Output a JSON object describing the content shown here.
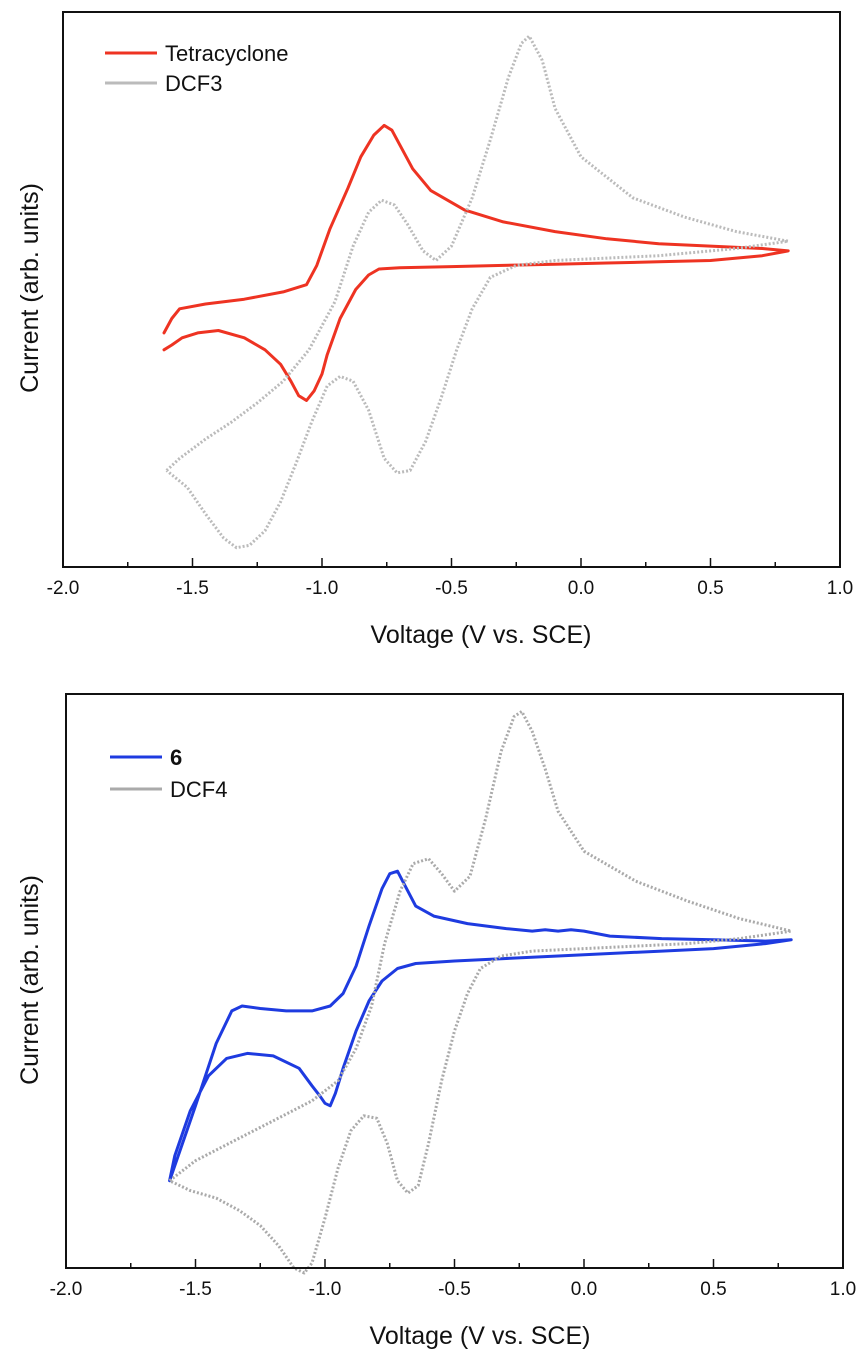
{
  "chart_data": [
    {
      "type": "line",
      "title": "",
      "xlabel": "Voltage (V vs. SCE)",
      "ylabel": "Current (arb. units)",
      "xlim": [
        -2.0,
        1.0
      ],
      "ylim": [
        -1.15,
        1.15
      ],
      "x_ticks": [
        "-2.0",
        "-1.5",
        "-1.0",
        "-0.5",
        "0.0",
        "0.5",
        "1.0"
      ],
      "y_ticks_shown": false,
      "grid": false,
      "legend": "top-left",
      "series": [
        {
          "name": "Tetracyclone",
          "color": "#ee3322",
          "style": "solid",
          "x": [
            -1.61,
            -1.58,
            -1.55,
            -1.45,
            -1.3,
            -1.15,
            -1.06,
            -1.02,
            -0.97,
            -0.9,
            -0.85,
            -0.8,
            -0.76,
            -0.73,
            -0.7,
            -0.65,
            -0.58,
            -0.45,
            -0.3,
            -0.1,
            0.1,
            0.3,
            0.5,
            0.7,
            0.8,
            0.7,
            0.5,
            0.3,
            0.1,
            -0.1,
            -0.3,
            -0.5,
            -0.7,
            -0.78,
            -0.82,
            -0.87,
            -0.93,
            -0.98,
            -1.0,
            -1.03,
            -1.06,
            -1.09,
            -1.12,
            -1.16,
            -1.22,
            -1.3,
            -1.4,
            -1.48,
            -1.54,
            -1.58,
            -1.61
          ],
          "y": [
            -0.18,
            -0.12,
            -0.08,
            -0.06,
            -0.04,
            -0.01,
            0.02,
            0.1,
            0.25,
            0.42,
            0.55,
            0.64,
            0.68,
            0.66,
            0.6,
            0.5,
            0.41,
            0.33,
            0.28,
            0.24,
            0.21,
            0.19,
            0.18,
            0.17,
            0.16,
            0.14,
            0.12,
            0.115,
            0.11,
            0.105,
            0.1,
            0.095,
            0.09,
            0.085,
            0.06,
            0.0,
            -0.12,
            -0.27,
            -0.35,
            -0.42,
            -0.46,
            -0.44,
            -0.38,
            -0.31,
            -0.25,
            -0.2,
            -0.17,
            -0.18,
            -0.2,
            -0.23,
            -0.25
          ]
        },
        {
          "name": "DCF3",
          "color": "#bbbbbb",
          "style": "dotted",
          "x": [
            -1.6,
            -1.55,
            -1.45,
            -1.35,
            -1.25,
            -1.15,
            -1.05,
            -0.95,
            -0.88,
            -0.82,
            -0.77,
            -0.72,
            -0.67,
            -0.61,
            -0.56,
            -0.5,
            -0.42,
            -0.35,
            -0.28,
            -0.23,
            -0.2,
            -0.15,
            -0.1,
            0.0,
            0.2,
            0.4,
            0.6,
            0.8,
            0.6,
            0.4,
            0.3,
            0.1,
            -0.1,
            -0.25,
            -0.35,
            -0.42,
            -0.48,
            -0.54,
            -0.6,
            -0.66,
            -0.71,
            -0.76,
            -0.82,
            -0.88,
            -0.93,
            -0.98,
            -1.04,
            -1.1,
            -1.16,
            -1.22,
            -1.28,
            -1.33,
            -1.38,
            -1.45,
            -1.52,
            -1.6
          ],
          "y": [
            -0.75,
            -0.7,
            -0.62,
            -0.55,
            -0.47,
            -0.38,
            -0.25,
            -0.05,
            0.18,
            0.32,
            0.37,
            0.35,
            0.27,
            0.16,
            0.12,
            0.18,
            0.38,
            0.62,
            0.88,
            1.02,
            1.05,
            0.95,
            0.75,
            0.55,
            0.38,
            0.3,
            0.24,
            0.2,
            0.17,
            0.15,
            0.14,
            0.13,
            0.12,
            0.1,
            0.05,
            -0.08,
            -0.25,
            -0.45,
            -0.63,
            -0.75,
            -0.76,
            -0.7,
            -0.5,
            -0.38,
            -0.36,
            -0.4,
            -0.55,
            -0.72,
            -0.88,
            -1.0,
            -1.06,
            -1.07,
            -1.03,
            -0.93,
            -0.82,
            -0.75
          ]
        }
      ]
    },
    {
      "type": "line",
      "title": "",
      "xlabel": "Voltage (V vs. SCE)",
      "ylabel": "Current (arb. units)",
      "xlim": [
        -2.0,
        1.0
      ],
      "ylim": [
        -1.15,
        1.15
      ],
      "x_ticks": [
        "-2.0",
        "-1.5",
        "-1.0",
        "-0.5",
        "0.0",
        "0.5",
        "1.0"
      ],
      "y_ticks_shown": false,
      "grid": false,
      "legend": "top-left",
      "series": [
        {
          "name": "6",
          "color": "#1e3be0",
          "style": "solid",
          "x": [
            -1.6,
            -1.5,
            -1.42,
            -1.36,
            -1.32,
            -1.25,
            -1.15,
            -1.05,
            -0.98,
            -0.93,
            -0.88,
            -0.83,
            -0.78,
            -0.75,
            -0.72,
            -0.69,
            -0.65,
            -0.58,
            -0.45,
            -0.3,
            -0.2,
            -0.15,
            -0.1,
            -0.05,
            0.0,
            0.05,
            0.1,
            0.3,
            0.5,
            0.7,
            0.8,
            0.7,
            0.5,
            0.3,
            0.1,
            -0.1,
            -0.3,
            -0.5,
            -0.65,
            -0.72,
            -0.78,
            -0.83,
            -0.88,
            -0.93,
            -0.96,
            -0.98,
            -1.0,
            -1.02,
            -1.05,
            -1.1,
            -1.2,
            -1.3,
            -1.38,
            -1.45,
            -1.52,
            -1.58,
            -1.6
          ],
          "y": [
            -0.8,
            -0.5,
            -0.25,
            -0.12,
            -0.1,
            -0.11,
            -0.12,
            -0.12,
            -0.1,
            -0.05,
            0.06,
            0.22,
            0.37,
            0.43,
            0.44,
            0.38,
            0.3,
            0.26,
            0.23,
            0.21,
            0.2,
            0.205,
            0.2,
            0.205,
            0.2,
            0.19,
            0.18,
            0.17,
            0.165,
            0.16,
            0.165,
            0.15,
            0.13,
            0.12,
            0.11,
            0.1,
            0.09,
            0.08,
            0.07,
            0.05,
            0.0,
            -0.08,
            -0.2,
            -0.35,
            -0.45,
            -0.5,
            -0.49,
            -0.46,
            -0.42,
            -0.35,
            -0.3,
            -0.29,
            -0.31,
            -0.38,
            -0.52,
            -0.7,
            -0.8
          ]
        },
        {
          "name": "DCF4",
          "color": "#aaaaaa",
          "style": "dotted",
          "x": [
            -1.6,
            -1.5,
            -1.35,
            -1.2,
            -1.05,
            -0.95,
            -0.88,
            -0.82,
            -0.77,
            -0.71,
            -0.66,
            -0.6,
            -0.55,
            -0.5,
            -0.44,
            -0.38,
            -0.32,
            -0.27,
            -0.24,
            -0.2,
            -0.15,
            -0.1,
            0.0,
            0.2,
            0.4,
            0.6,
            0.8,
            0.6,
            0.4,
            0.2,
            0.0,
            -0.2,
            -0.32,
            -0.4,
            -0.45,
            -0.5,
            -0.55,
            -0.6,
            -0.64,
            -0.68,
            -0.72,
            -0.76,
            -0.8,
            -0.85,
            -0.9,
            -0.95,
            -1.0,
            -1.05,
            -1.08,
            -1.12,
            -1.18,
            -1.25,
            -1.33,
            -1.42,
            -1.52,
            -1.6
          ],
          "y": [
            -0.8,
            -0.72,
            -0.64,
            -0.56,
            -0.48,
            -0.4,
            -0.27,
            -0.1,
            0.15,
            0.36,
            0.47,
            0.49,
            0.43,
            0.36,
            0.42,
            0.65,
            0.92,
            1.06,
            1.08,
            1.0,
            0.85,
            0.68,
            0.52,
            0.4,
            0.32,
            0.25,
            0.2,
            0.17,
            0.15,
            0.14,
            0.13,
            0.12,
            0.1,
            0.05,
            -0.05,
            -0.2,
            -0.4,
            -0.65,
            -0.82,
            -0.85,
            -0.8,
            -0.65,
            -0.55,
            -0.54,
            -0.6,
            -0.75,
            -0.95,
            -1.13,
            -1.17,
            -1.15,
            -1.06,
            -0.98,
            -0.92,
            -0.87,
            -0.84,
            -0.8
          ]
        }
      ]
    }
  ]
}
